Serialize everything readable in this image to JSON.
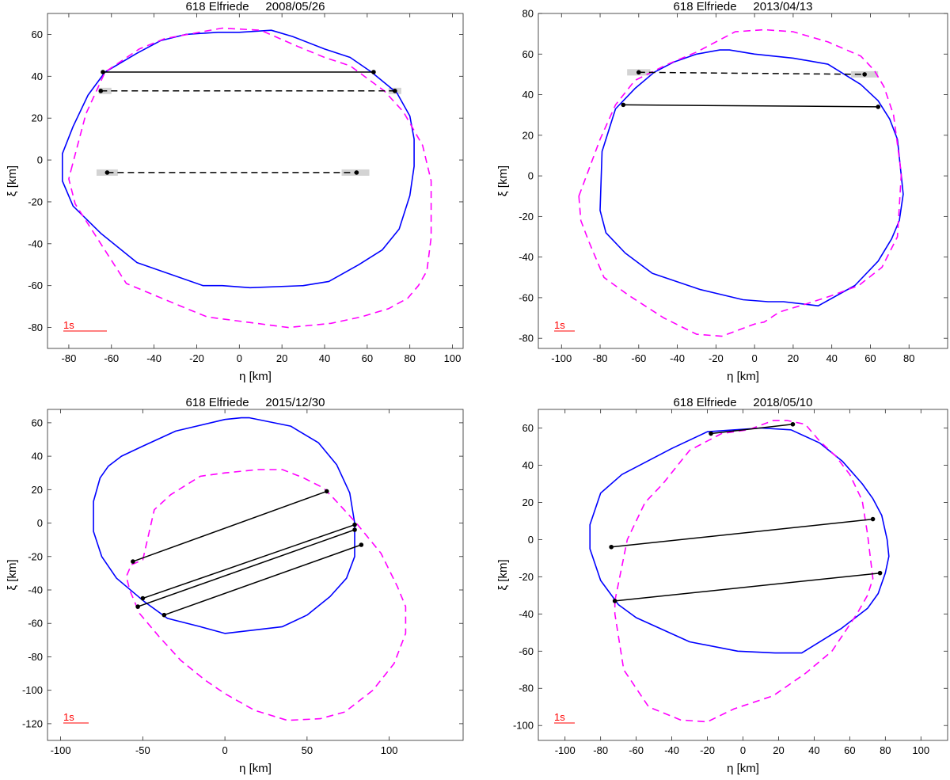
{
  "chart_data": [
    {
      "type": "line",
      "title": "618 Elfriede     2008/05/26",
      "xlabel": "η [km]",
      "ylabel": "ξ [km]",
      "xlim": [
        -90,
        105
      ],
      "ylim": [
        -90,
        70
      ],
      "xticks": [
        -80,
        -60,
        -40,
        -20,
        0,
        20,
        40,
        60,
        80,
        100
      ],
      "yticks": [
        -80,
        -60,
        -40,
        -20,
        0,
        20,
        40,
        60
      ],
      "scale_label": "1s",
      "series": [
        {
          "name": "model-blue",
          "color": "#0000ff",
          "dash": false,
          "x": [
            -83,
            -78,
            -71,
            -63,
            -48,
            -37,
            -25,
            -10,
            0,
            15,
            25,
            40,
            52,
            62,
            74,
            80,
            82,
            82,
            80,
            75,
            67,
            56,
            42,
            30,
            5,
            -8,
            -17,
            -48,
            -65,
            -78,
            -83
          ],
          "y": [
            3,
            16,
            31,
            42,
            51,
            57,
            60,
            61,
            61,
            62,
            59,
            53,
            49,
            42,
            32,
            21,
            10,
            -3,
            -17,
            -33,
            -43,
            -50,
            -58,
            -60,
            -61,
            -60,
            -60,
            -49,
            -35,
            -22,
            -10
          ]
        },
        {
          "name": "model-magenta",
          "color": "#ff00ff",
          "dash": true,
          "x": [
            -79,
            -72,
            -63,
            -47,
            -35,
            -8,
            10,
            28,
            40,
            52,
            68,
            77,
            86,
            90,
            90,
            88,
            84,
            79,
            70,
            57,
            43,
            23,
            8,
            -15,
            -27,
            -53,
            -65,
            -77,
            -80
          ],
          "y": [
            -5,
            22,
            42,
            53,
            58,
            63,
            62,
            54,
            49,
            45,
            33,
            23,
            7,
            -10,
            -37,
            -53,
            -60,
            -66,
            -71,
            -75,
            -78,
            -80,
            -78,
            -75,
            -70,
            -59,
            -40,
            -21,
            -9
          ]
        },
        {
          "name": "chord-1",
          "color": "#000000",
          "dash": false,
          "x": [
            -64,
            63
          ],
          "y": [
            42,
            42
          ]
        },
        {
          "name": "chord-2",
          "color": "#000000",
          "dash": true,
          "x": [
            -65,
            73
          ],
          "y": [
            33,
            33
          ]
        },
        {
          "name": "chord-3",
          "color": "#000000",
          "dash": true,
          "x": [
            -62,
            55
          ],
          "y": [
            -6,
            -6
          ]
        }
      ],
      "error_bars": [
        {
          "x": [
            -66,
            -60
          ],
          "y": 33
        },
        {
          "x": [
            70,
            76
          ],
          "y": 33
        },
        {
          "x": [
            -67,
            -57
          ],
          "y": -6
        },
        {
          "x": [
            48,
            61
          ],
          "y": -6
        }
      ]
    },
    {
      "type": "line",
      "title": "618 Elfriede     2013/04/13",
      "xlabel": "η [km]",
      "ylabel": "ξ [km]",
      "xlim": [
        -112,
        100
      ],
      "ylim": [
        -85,
        80
      ],
      "xticks": [
        -100,
        -80,
        -60,
        -40,
        -20,
        0,
        20,
        40,
        60,
        80
      ],
      "yticks": [
        -80,
        -60,
        -40,
        -20,
        0,
        20,
        40,
        60,
        80
      ],
      "scale_label": "1s",
      "series": [
        {
          "name": "model-blue",
          "color": "#0000ff",
          "dash": false,
          "x": [
            -79,
            -72,
            -62,
            -52,
            -42,
            -30,
            -18,
            -13,
            0,
            20,
            38,
            55,
            64,
            70,
            74,
            77,
            75,
            71,
            64,
            52,
            33,
            15,
            7,
            -6,
            -28,
            -53,
            -67,
            -77,
            -80
          ],
          "y": [
            12,
            33,
            43,
            51,
            56,
            60,
            62,
            62,
            60,
            58,
            55,
            45,
            37,
            28,
            18,
            -9,
            -22,
            -31,
            -42,
            -54,
            -64,
            -62,
            -62,
            -61,
            -56,
            -48,
            -38,
            -28,
            -17
          ]
        },
        {
          "name": "model-magenta",
          "color": "#ff00ff",
          "dash": true,
          "x": [
            -91,
            -80,
            -72,
            -62,
            -45,
            -30,
            -10,
            5,
            20,
            38,
            55,
            62,
            67,
            72,
            76,
            74,
            66,
            54,
            40,
            27,
            13,
            5,
            0,
            -17,
            -30,
            -47,
            -65,
            -78,
            -86,
            -90
          ],
          "y": [
            -10,
            18,
            35,
            47,
            55,
            61,
            71,
            72,
            71,
            66,
            59,
            52,
            44,
            30,
            1,
            -30,
            -45,
            -54,
            -59,
            -63,
            -67,
            -72,
            -73,
            -79,
            -78,
            -70,
            -59,
            -50,
            -32,
            -22
          ]
        },
        {
          "name": "chord-1",
          "color": "#000000",
          "dash": true,
          "x": [
            -60,
            57
          ],
          "y": [
            51,
            50
          ]
        },
        {
          "name": "chord-2",
          "color": "#000000",
          "dash": false,
          "x": [
            -68,
            64
          ],
          "y": [
            35,
            34
          ]
        }
      ],
      "error_bars": [
        {
          "x": [
            -66,
            -54
          ],
          "y": 51
        },
        {
          "x": [
            50,
            64
          ],
          "y": 50
        }
      ]
    },
    {
      "type": "line",
      "title": "618 Elfriede     2015/12/30",
      "xlabel": "η [km]",
      "ylabel": "ξ [km]",
      "xlim": [
        -108,
        145
      ],
      "ylim": [
        -130,
        68
      ],
      "xticks": [
        -100,
        -50,
        0,
        50,
        100
      ],
      "yticks": [
        -120,
        -100,
        -80,
        -60,
        -40,
        -20,
        0,
        20,
        40,
        60
      ],
      "scale_label": "1s",
      "series": [
        {
          "name": "model-blue",
          "color": "#0000ff",
          "dash": false,
          "x": [
            -80,
            -76,
            -71,
            -63,
            -50,
            -30,
            0,
            10,
            15,
            40,
            57,
            68,
            76,
            79,
            79,
            74,
            64,
            50,
            35,
            0,
            -15,
            -35,
            -49,
            -66,
            -75,
            -80
          ],
          "y": [
            13,
            27,
            34,
            40,
            46,
            55,
            62,
            63,
            63,
            58,
            48,
            35,
            18,
            0,
            -20,
            -33,
            -44,
            -55,
            -62,
            -66,
            -62,
            -57,
            -47,
            -33,
            -20,
            -5
          ]
        },
        {
          "name": "model-magenta",
          "color": "#ff00ff",
          "dash": true,
          "x": [
            -50,
            -43,
            -33,
            -15,
            0,
            20,
            35,
            48,
            60,
            66,
            80,
            95,
            105,
            110,
            110,
            103,
            90,
            73,
            58,
            38,
            18,
            0,
            -12,
            -27,
            -40,
            -52,
            -58,
            -60,
            -57
          ],
          "y": [
            -22,
            8,
            17,
            28,
            30,
            32,
            32,
            27,
            21,
            15,
            0,
            -18,
            -38,
            -50,
            -66,
            -84,
            -100,
            -113,
            -117,
            -118,
            -112,
            -102,
            -94,
            -82,
            -68,
            -54,
            -40,
            -32,
            -25
          ]
        },
        {
          "name": "chord-1",
          "color": "#000000",
          "dash": false,
          "x": [
            -56,
            62
          ],
          "y": [
            -23,
            19
          ]
        },
        {
          "name": "chord-2",
          "color": "#000000",
          "dash": false,
          "x": [
            -50,
            79
          ],
          "y": [
            -45,
            -1
          ]
        },
        {
          "name": "chord-3",
          "color": "#000000",
          "dash": false,
          "x": [
            -53,
            79
          ],
          "y": [
            -50,
            -4
          ]
        },
        {
          "name": "chord-4",
          "color": "#000000",
          "dash": false,
          "x": [
            -37,
            83
          ],
          "y": [
            -55,
            -13
          ]
        }
      ],
      "error_bars": []
    },
    {
      "type": "line",
      "title": "618 Elfriede     2018/05/10",
      "xlabel": "η [km]",
      "ylabel": "ξ [km]",
      "xlim": [
        -115,
        115
      ],
      "ylim": [
        -108,
        70
      ],
      "xticks": [
        -100,
        -80,
        -60,
        -40,
        -20,
        0,
        20,
        40,
        60,
        80,
        100
      ],
      "yticks": [
        -100,
        -80,
        -60,
        -40,
        -20,
        0,
        20,
        40,
        60
      ],
      "scale_label": "1s",
      "series": [
        {
          "name": "model-blue",
          "color": "#0000ff",
          "dash": false,
          "x": [
            -86,
            -80,
            -68,
            -60,
            -40,
            -20,
            10,
            27,
            43,
            56,
            67,
            73,
            78,
            81,
            82,
            80,
            76,
            70,
            55,
            33,
            18,
            -3,
            -30,
            -60,
            -70,
            -80,
            -86
          ],
          "y": [
            8,
            25,
            35,
            39,
            49,
            58,
            60,
            59,
            52,
            42,
            30,
            22,
            13,
            0,
            -9,
            -18,
            -29,
            -37,
            -48,
            -61,
            -61,
            -60,
            -55,
            -42,
            -35,
            -22,
            -5
          ]
        },
        {
          "name": "model-magenta",
          "color": "#ff00ff",
          "dash": true,
          "x": [
            -72,
            -65,
            -55,
            -45,
            -30,
            -12,
            3,
            17,
            25,
            35,
            43,
            52,
            60,
            67,
            70,
            73,
            70,
            64,
            50,
            35,
            17,
            -5,
            -20,
            -35,
            -53,
            -67,
            -72,
            -72
          ],
          "y": [
            -33,
            0,
            20,
            30,
            48,
            57,
            59,
            64,
            64,
            62,
            53,
            45,
            35,
            21,
            3,
            -21,
            -30,
            -40,
            -60,
            -72,
            -84,
            -91,
            -98,
            -97,
            -90,
            -70,
            -40,
            -37
          ]
        },
        {
          "name": "chord-1",
          "color": "#000000",
          "dash": false,
          "x": [
            -18,
            28
          ],
          "y": [
            57,
            62
          ]
        },
        {
          "name": "chord-2",
          "color": "#000000",
          "dash": false,
          "x": [
            -74,
            73
          ],
          "y": [
            -4,
            11
          ]
        },
        {
          "name": "chord-3",
          "color": "#000000",
          "dash": false,
          "x": [
            -72,
            77
          ],
          "y": [
            -33,
            -18
          ]
        }
      ],
      "error_bars": []
    }
  ]
}
